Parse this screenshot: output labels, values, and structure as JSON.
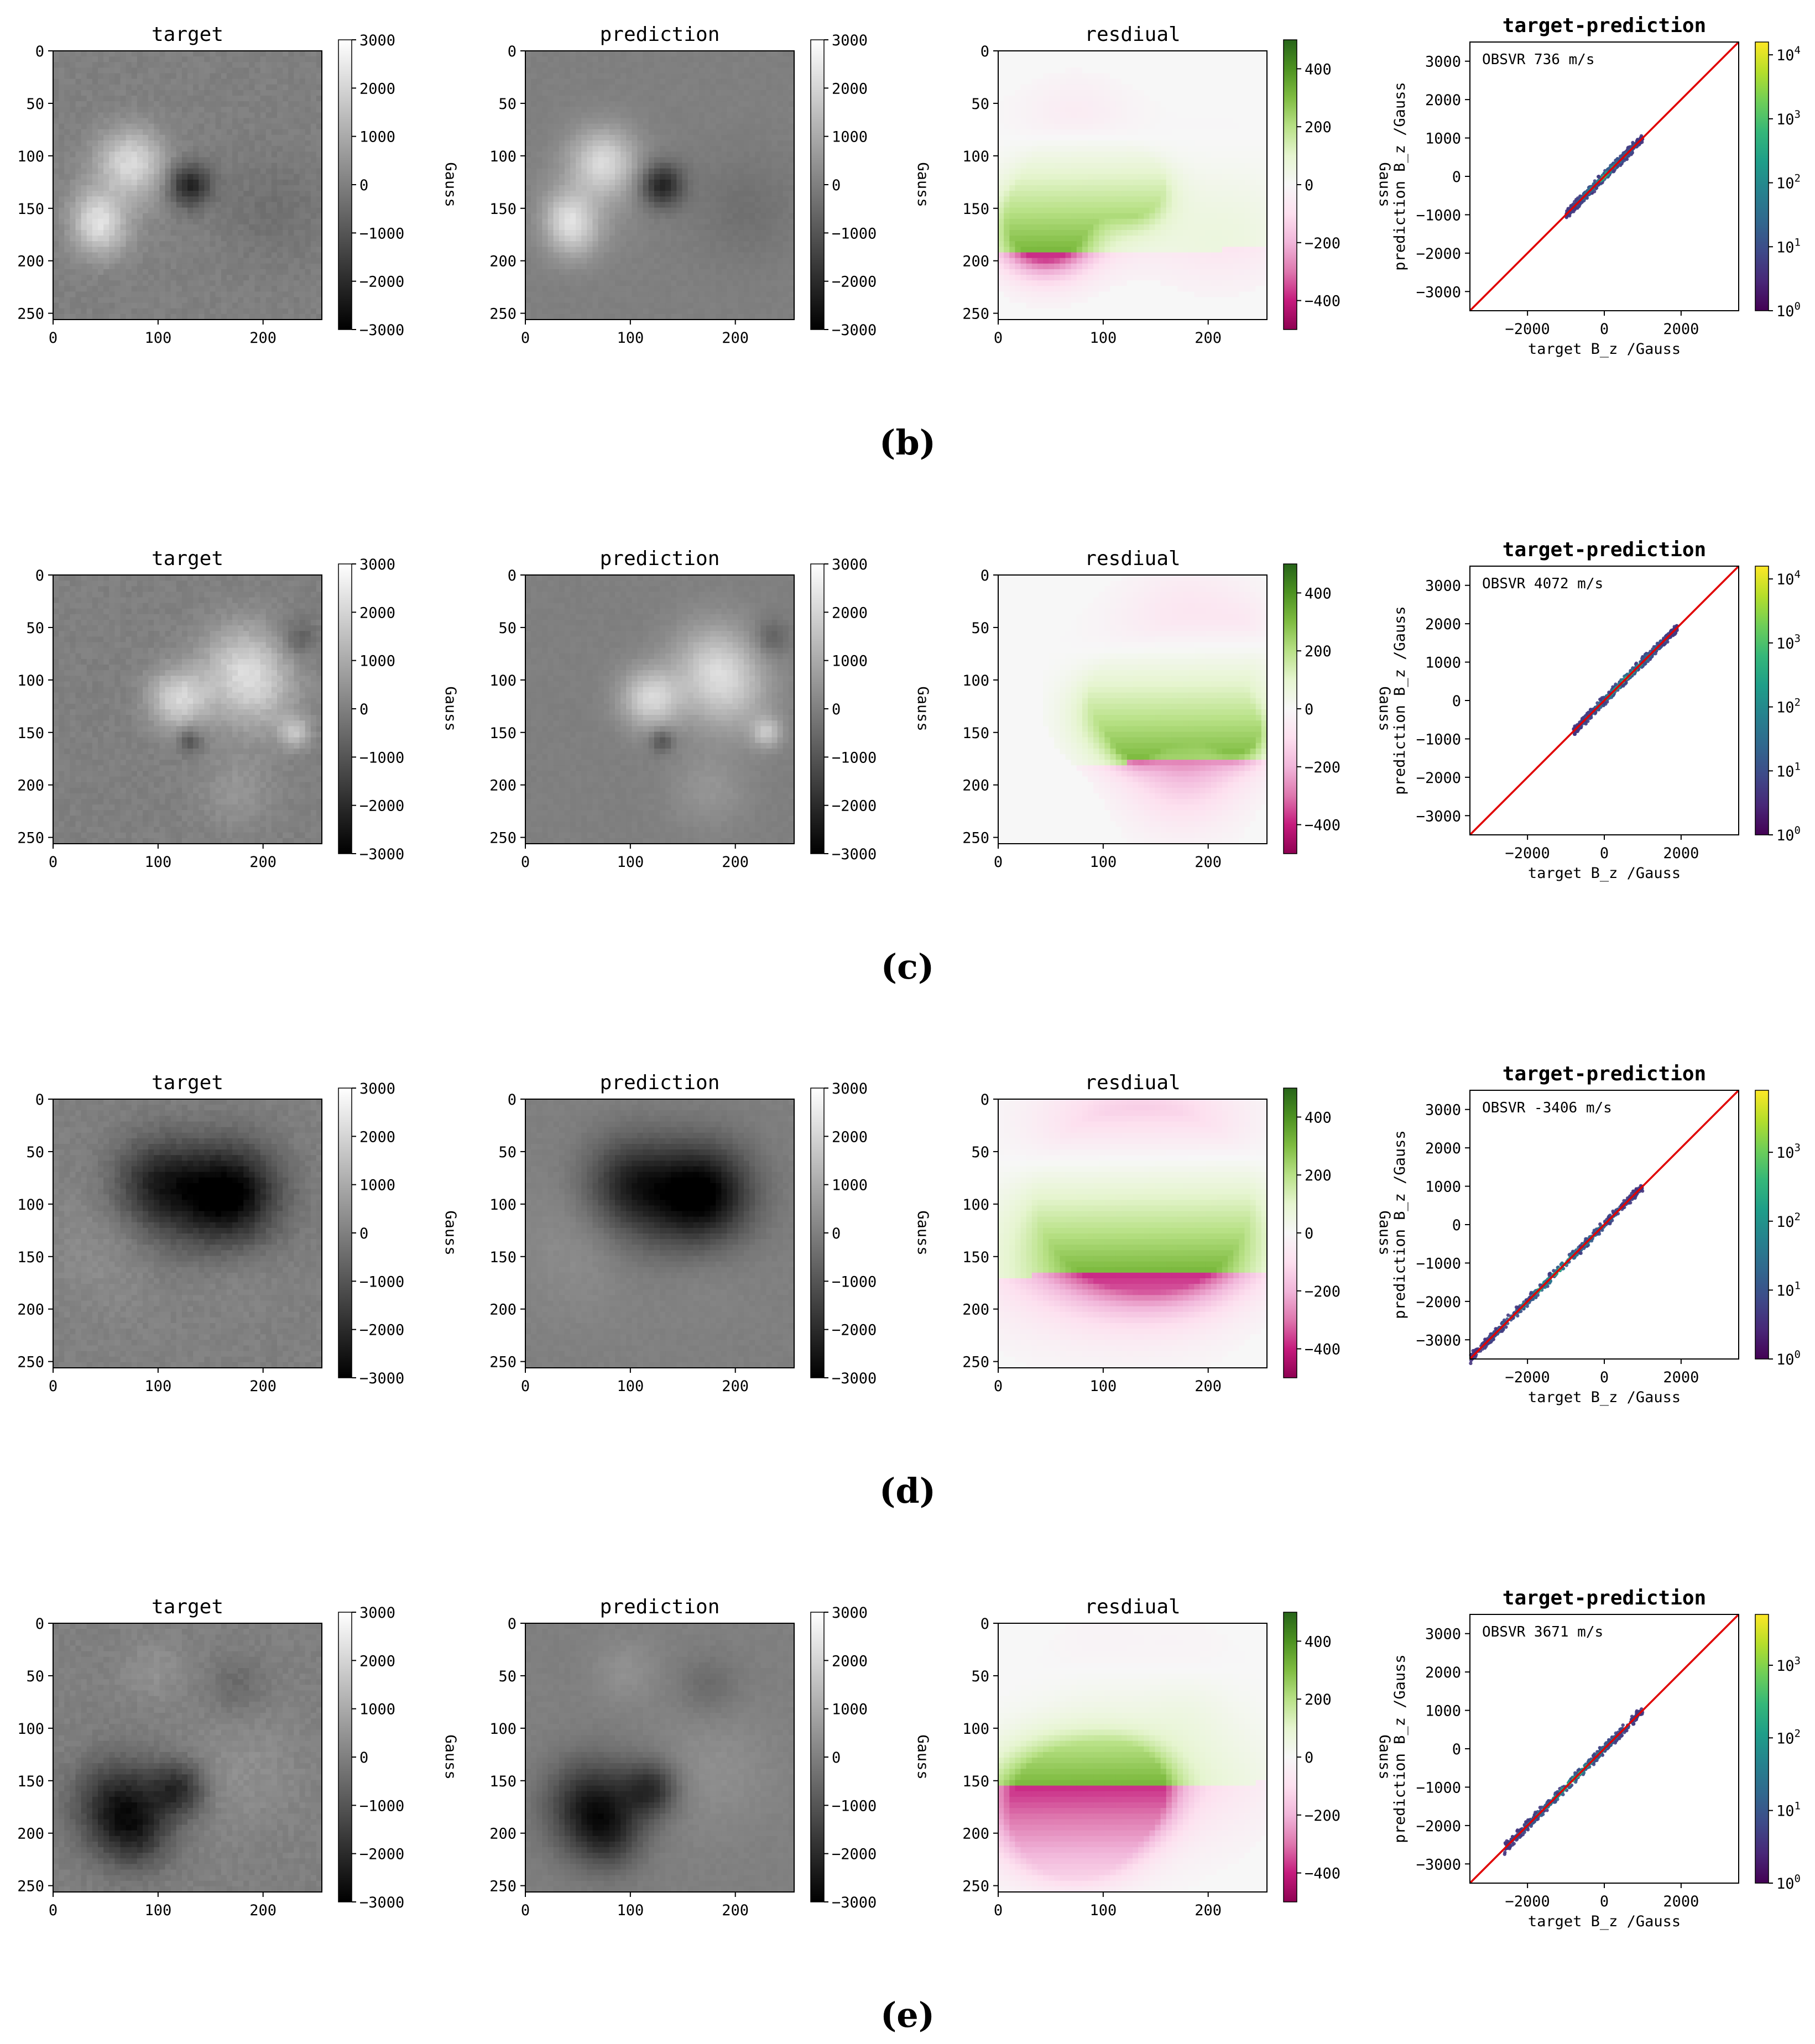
{
  "figure": {
    "colors": {
      "scatter_fit_line": "#e00000",
      "axes": "#000000"
    },
    "colormaps": {
      "gray": [
        "#000000",
        "#ffffff"
      ],
      "residual_PiYG": [
        "#8e0152",
        "#c51b7d",
        "#de77ae",
        "#f1b6da",
        "#fde0ef",
        "#f7f7f7",
        "#e6f5d0",
        "#b8e186",
        "#7fbc41",
        "#4d9221",
        "#276419"
      ],
      "density_viridis": [
        "#440154",
        "#482878",
        "#3e4a89",
        "#31688e",
        "#26828e",
        "#1f9e89",
        "#35b779",
        "#6ece58",
        "#b5de2b",
        "#fde725"
      ]
    }
  },
  "chart_data": [
    {
      "panel_row": "b",
      "caption": "(b)",
      "maps": [
        {
          "kind": "target",
          "title": "target",
          "type": "heatmap",
          "xticks": [
            0,
            100,
            200
          ],
          "yticks": [
            0,
            50,
            100,
            150,
            200,
            250
          ],
          "cbar_ticks": [
            "3000",
            "2000",
            "1000",
            "0",
            "−1000",
            "−2000",
            "−3000"
          ],
          "cbar_range": [
            -3000,
            3000
          ],
          "cbar_label": "Gauss"
        },
        {
          "kind": "prediction",
          "title": "prediction",
          "type": "heatmap",
          "xticks": [
            0,
            100,
            200
          ],
          "yticks": [
            0,
            50,
            100,
            150,
            200,
            250
          ],
          "cbar_ticks": [
            "3000",
            "2000",
            "1000",
            "0",
            "−1000",
            "−2000",
            "−3000"
          ],
          "cbar_range": [
            -3000,
            3000
          ],
          "cbar_label": "Gauss"
        },
        {
          "kind": "residual",
          "title": "resdiual",
          "type": "heatmap",
          "xticks": [
            0,
            100,
            200
          ],
          "yticks": [
            0,
            50,
            100,
            150,
            200,
            250
          ],
          "cbar_ticks": [
            "400",
            "200",
            "0",
            "−200",
            "−400"
          ],
          "cbar_range": [
            -500,
            500
          ],
          "cbar_label": "Gauss"
        }
      ],
      "scatter": {
        "title": "target-prediction",
        "type": "scatter",
        "annotation": "OBSVR 736 m/s",
        "xlabel": "target B_z /Gauss",
        "ylabel": "prediction B_z /Gauss",
        "xticks": [
          "−2000",
          "0",
          "2000"
        ],
        "yticks": [
          "3000",
          "2000",
          "1000",
          "0",
          "−1000",
          "−2000",
          "−3000"
        ],
        "xlim": [
          -3500,
          3500
        ],
        "ylim": [
          -3500,
          3500
        ],
        "density_range": [
          -1000,
          1000
        ],
        "cbar_log_ticks": [
          0,
          1,
          2,
          3,
          4
        ],
        "cbar_max_exp": 4.2
      }
    },
    {
      "panel_row": "c",
      "caption": "(c)",
      "maps": [
        {
          "kind": "target",
          "title": "target",
          "type": "heatmap",
          "xticks": [
            0,
            100,
            200
          ],
          "yticks": [
            0,
            50,
            100,
            150,
            200,
            250
          ],
          "cbar_ticks": [
            "3000",
            "2000",
            "1000",
            "0",
            "−1000",
            "−2000",
            "−3000"
          ],
          "cbar_range": [
            -3000,
            3000
          ],
          "cbar_label": "Gauss"
        },
        {
          "kind": "prediction",
          "title": "prediction",
          "type": "heatmap",
          "xticks": [
            0,
            100,
            200
          ],
          "yticks": [
            0,
            50,
            100,
            150,
            200,
            250
          ],
          "cbar_ticks": [
            "3000",
            "2000",
            "1000",
            "0",
            "−1000",
            "−2000",
            "−3000"
          ],
          "cbar_range": [
            -3000,
            3000
          ],
          "cbar_label": "Gauss"
        },
        {
          "kind": "residual",
          "title": "resdiual",
          "type": "heatmap",
          "xticks": [
            0,
            100,
            200
          ],
          "yticks": [
            0,
            50,
            100,
            150,
            200,
            250
          ],
          "cbar_ticks": [
            "400",
            "200",
            "0",
            "−200",
            "−400"
          ],
          "cbar_range": [
            -500,
            500
          ],
          "cbar_label": "Gauss"
        }
      ],
      "scatter": {
        "title": "target-prediction",
        "type": "scatter",
        "annotation": "OBSVR 4072 m/s",
        "xlabel": "target B_z /Gauss",
        "ylabel": "prediction B_z /Gauss",
        "xticks": [
          "−2000",
          "0",
          "2000"
        ],
        "yticks": [
          "3000",
          "2000",
          "1000",
          "0",
          "−1000",
          "−2000",
          "−3000"
        ],
        "xlim": [
          -3500,
          3500
        ],
        "ylim": [
          -3500,
          3500
        ],
        "density_range": [
          -800,
          1900
        ],
        "cbar_log_ticks": [
          0,
          1,
          2,
          3,
          4
        ],
        "cbar_max_exp": 4.2
      }
    },
    {
      "panel_row": "d",
      "caption": "(d)",
      "maps": [
        {
          "kind": "target",
          "title": "target",
          "type": "heatmap",
          "xticks": [
            0,
            100,
            200
          ],
          "yticks": [
            0,
            50,
            100,
            150,
            200,
            250
          ],
          "cbar_ticks": [
            "3000",
            "2000",
            "1000",
            "0",
            "−1000",
            "−2000",
            "−3000"
          ],
          "cbar_range": [
            -3000,
            3000
          ],
          "cbar_label": "Gauss"
        },
        {
          "kind": "prediction",
          "title": "prediction",
          "type": "heatmap",
          "xticks": [
            0,
            100,
            200
          ],
          "yticks": [
            0,
            50,
            100,
            150,
            200,
            250
          ],
          "cbar_ticks": [
            "3000",
            "2000",
            "1000",
            "0",
            "−1000",
            "−2000",
            "−3000"
          ],
          "cbar_range": [
            -3000,
            3000
          ],
          "cbar_label": "Gauss"
        },
        {
          "kind": "residual",
          "title": "resdiual",
          "type": "heatmap",
          "xticks": [
            0,
            100,
            200
          ],
          "yticks": [
            0,
            50,
            100,
            150,
            200,
            250
          ],
          "cbar_ticks": [
            "400",
            "200",
            "0",
            "−200",
            "−400"
          ],
          "cbar_range": [
            -500,
            500
          ],
          "cbar_label": "Gauss"
        }
      ],
      "scatter": {
        "title": "target-prediction",
        "type": "scatter",
        "annotation": "OBSVR -3406 m/s",
        "xlabel": "target B_z /Gauss",
        "ylabel": "prediction B_z /Gauss",
        "xticks": [
          "−2000",
          "0",
          "2000"
        ],
        "yticks": [
          "3000",
          "2000",
          "1000",
          "0",
          "−1000",
          "−2000",
          "−3000"
        ],
        "xlim": [
          -3500,
          3500
        ],
        "ylim": [
          -3500,
          3500
        ],
        "density_range": [
          -3500,
          1000
        ],
        "cbar_log_ticks": [
          0,
          1,
          2,
          3
        ],
        "cbar_max_exp": 3.9
      }
    },
    {
      "panel_row": "e",
      "caption": "(e)",
      "maps": [
        {
          "kind": "target",
          "title": "target",
          "type": "heatmap",
          "xticks": [
            0,
            100,
            200
          ],
          "yticks": [
            0,
            50,
            100,
            150,
            200,
            250
          ],
          "cbar_ticks": [
            "3000",
            "2000",
            "1000",
            "0",
            "−1000",
            "−2000",
            "−3000"
          ],
          "cbar_range": [
            -3000,
            3000
          ],
          "cbar_label": "Gauss"
        },
        {
          "kind": "prediction",
          "title": "prediction",
          "type": "heatmap",
          "xticks": [
            0,
            100,
            200
          ],
          "yticks": [
            0,
            50,
            100,
            150,
            200,
            250
          ],
          "cbar_ticks": [
            "3000",
            "2000",
            "1000",
            "0",
            "−1000",
            "−2000",
            "−3000"
          ],
          "cbar_range": [
            -3000,
            3000
          ],
          "cbar_label": "Gauss"
        },
        {
          "kind": "residual",
          "title": "resdiual",
          "type": "heatmap",
          "xticks": [
            0,
            100,
            200
          ],
          "yticks": [
            0,
            50,
            100,
            150,
            200,
            250
          ],
          "cbar_ticks": [
            "400",
            "200",
            "0",
            "−200",
            "−400"
          ],
          "cbar_range": [
            -500,
            500
          ],
          "cbar_label": "Gauss"
        }
      ],
      "scatter": {
        "title": "target-prediction",
        "type": "scatter",
        "annotation": "OBSVR 3671 m/s",
        "xlabel": "target B_z /Gauss",
        "ylabel": "prediction B_z /Gauss",
        "xticks": [
          "−2000",
          "0",
          "2000"
        ],
        "yticks": [
          "3000",
          "2000",
          "1000",
          "0",
          "−1000",
          "−2000",
          "−3000"
        ],
        "xlim": [
          -3500,
          3500
        ],
        "ylim": [
          -3500,
          3500
        ],
        "density_range": [
          -2600,
          1000
        ],
        "cbar_log_ticks": [
          0,
          1,
          2,
          3
        ],
        "cbar_max_exp": 3.7
      }
    }
  ]
}
